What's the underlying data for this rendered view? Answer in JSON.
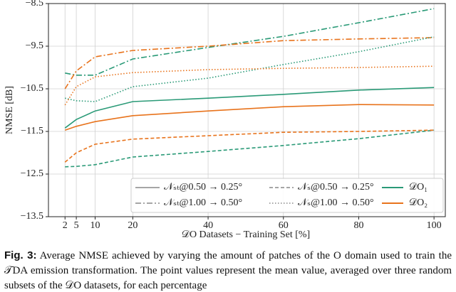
{
  "chart_data": {
    "type": "line",
    "xlabel": "𝒟O Datasets − Training Set [%]",
    "ylabel": "NMSE [dB]",
    "x": [
      2,
      5,
      10,
      20,
      40,
      60,
      80,
      100
    ],
    "xlim": [
      -2.4,
      103
    ],
    "xticks": [
      2,
      5,
      10,
      20,
      40,
      60,
      80,
      100
    ],
    "ylim": [
      -13.5,
      -8.5
    ],
    "yticks": [
      {
        "value": -13.5,
        "label": "−13.5"
      },
      {
        "value": -12.5,
        "label": "−12.5"
      },
      {
        "value": -11.5,
        "label": "−11.5"
      },
      {
        "value": -10.5,
        "label": "−10.5"
      },
      {
        "value": -9.5,
        "label": "−9.5"
      },
      {
        "value": -8.5,
        "label": "−8.5"
      }
    ],
    "grid": true,
    "series": [
      {
        "name": "𝒩ₛₜ@0.50 → 0.25°",
        "dataset": "𝒟O₁",
        "color": "#2a9a77",
        "dash": "solid",
        "values": [
          -11.42,
          -11.22,
          -11.02,
          -10.8,
          -10.72,
          -10.63,
          -10.53,
          -10.47
        ]
      },
      {
        "name": "𝒩ₛₜ@0.50 → 0.25°",
        "dataset": "𝒟O₂",
        "color": "#e8731c",
        "dash": "solid",
        "values": [
          -11.47,
          -11.38,
          -11.27,
          -11.13,
          -11.02,
          -10.92,
          -10.87,
          -10.88
        ]
      },
      {
        "name": "𝒩ₛₜ@1.00 → 0.50°",
        "dataset": "𝒟O₁",
        "color": "#2a9a77",
        "dash": "dashdot",
        "values": [
          -10.13,
          -10.18,
          -10.18,
          -9.8,
          -9.53,
          -9.27,
          -8.95,
          -8.62
        ]
      },
      {
        "name": "𝒩ₛₜ@1.00 → 0.50°",
        "dataset": "𝒟O₂",
        "color": "#e8731c",
        "dash": "dashdot",
        "values": [
          -10.5,
          -10.08,
          -9.75,
          -9.6,
          -9.5,
          -9.37,
          -9.33,
          -9.3
        ]
      },
      {
        "name": "𝒩ₛ@0.50 → 0.25°",
        "dataset": "𝒟O₁",
        "color": "#2a9a77",
        "dash": "dashed",
        "values": [
          -12.33,
          -12.32,
          -12.28,
          -12.1,
          -11.97,
          -11.83,
          -11.67,
          -11.47
        ]
      },
      {
        "name": "𝒩ₛ@0.50 → 0.25°",
        "dataset": "𝒟O₂",
        "color": "#e8731c",
        "dash": "dashed",
        "values": [
          -12.22,
          -12.0,
          -11.8,
          -11.68,
          -11.6,
          -11.52,
          -11.5,
          -11.47
        ]
      },
      {
        "name": "𝒩ₛ@1.00 → 0.50°",
        "dataset": "𝒟O₁",
        "color": "#2a9a77",
        "dash": "dotted",
        "values": [
          -10.72,
          -10.78,
          -10.8,
          -10.45,
          -10.25,
          -9.93,
          -9.63,
          -9.28
        ]
      },
      {
        "name": "𝒩ₛ@1.00 → 0.50°",
        "dataset": "𝒟O₂",
        "color": "#e8731c",
        "dash": "dotted",
        "values": [
          -10.88,
          -10.45,
          -10.22,
          -10.12,
          -10.05,
          -10.02,
          -10.0,
          -9.97
        ]
      }
    ]
  },
  "caption": {
    "label": "Fig. 3:",
    "text": "Average NMSE achieved by varying the amount of patches of the O domain used to train the 𝒯DA emission transformation. The point values represent the mean value, averaged over three random subsets of the 𝒟O datasets, for each percentage"
  }
}
